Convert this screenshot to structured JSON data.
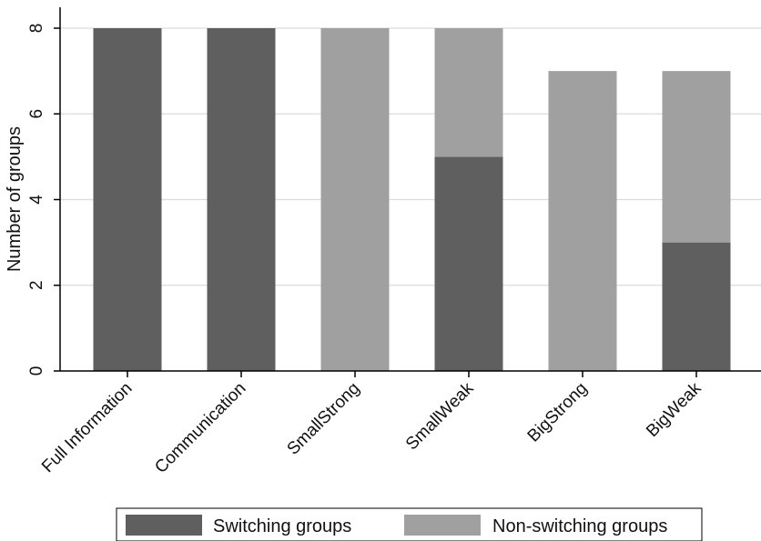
{
  "chart_data": {
    "type": "bar",
    "stacked": true,
    "categories": [
      "Full Information",
      "Communication",
      "SmallStrong",
      "SmallWeak",
      "BigStrong",
      "BigWeak"
    ],
    "series": [
      {
        "name": "Switching groups",
        "values": [
          8,
          8,
          0,
          5,
          0,
          3
        ],
        "color": "#5f5f5f"
      },
      {
        "name": "Non-switching groups",
        "values": [
          0,
          0,
          8,
          3,
          7,
          4
        ],
        "color": "#a0a0a0"
      }
    ],
    "title": "",
    "xlabel": "",
    "ylabel": "Number of groups",
    "ylim": [
      0,
      8
    ],
    "yticks": [
      0,
      2,
      4,
      6,
      8
    ],
    "grid": true,
    "legend_position": "bottom"
  }
}
